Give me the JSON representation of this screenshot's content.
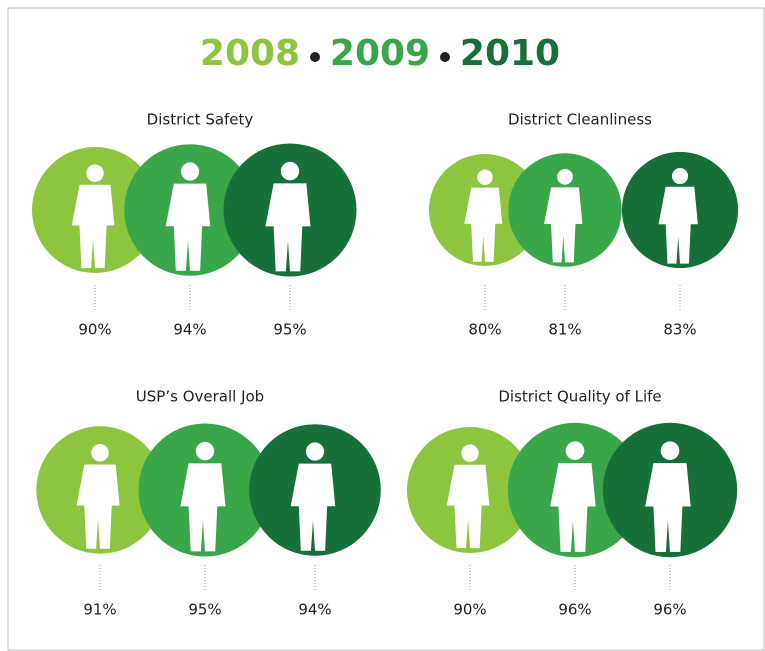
{
  "header": {
    "years": [
      "2008",
      "2009",
      "2010"
    ],
    "colors": [
      "#8cc63f",
      "#3aa64a",
      "#17703a"
    ]
  },
  "chart_data": [
    {
      "type": "bubble",
      "title": "District Safety",
      "values": [
        90,
        94,
        95
      ],
      "value_labels": [
        "90%",
        "94%",
        "95%"
      ]
    },
    {
      "type": "bubble",
      "title": "District Cleanliness",
      "values": [
        80,
        81,
        83
      ],
      "value_labels": [
        "80%",
        "81%",
        "83%"
      ]
    },
    {
      "type": "bubble",
      "title": "USP’s Overall Job",
      "values": [
        91,
        95,
        94
      ],
      "value_labels": [
        "91%",
        "95%",
        "94%"
      ]
    },
    {
      "type": "bubble",
      "title": "District Quality of Life",
      "values": [
        90,
        96,
        96
      ],
      "value_labels": [
        "90%",
        "96%",
        "96%"
      ]
    }
  ]
}
